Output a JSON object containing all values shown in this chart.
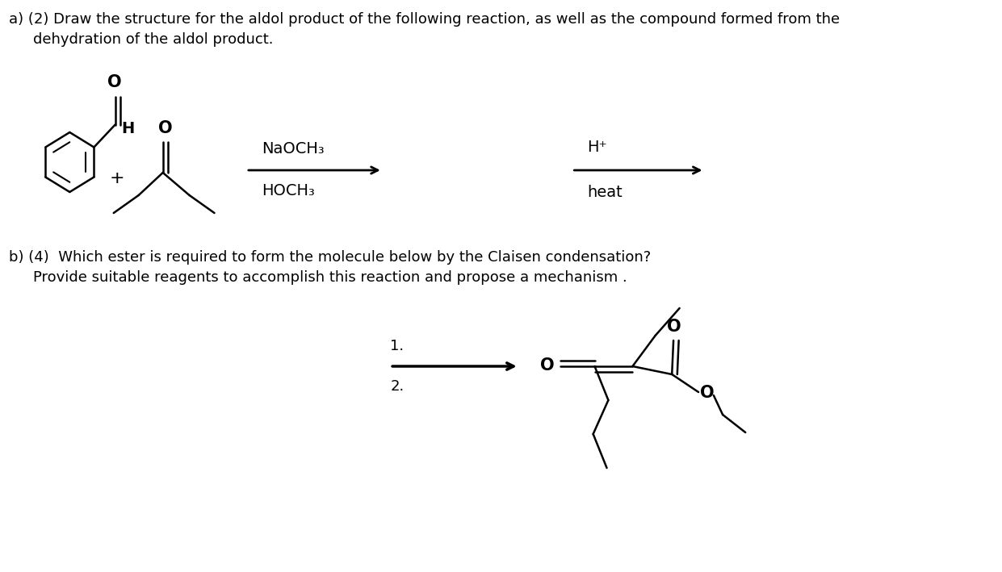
{
  "bg_color": "#ffffff",
  "text_color": "#000000",
  "title_a": "a) (2) Draw the structure for the aldol product of the following reaction, as well as the compound formed from the",
  "title_a2": "dehydration of the aldol product.",
  "title_b": "b) (4)  Which ester is required to form the molecule below by the Claisen condensation?",
  "title_b2": "Provide suitable reagents to accomplish this reaction and propose a mechanism .",
  "reagent1_line1": "NaOCH₃",
  "reagent1_line2": "HOCH₃",
  "reagent2_line1": "H⁺",
  "reagent2_line2": "heat",
  "label1": "1.",
  "label2": "2.",
  "fontsize_main": 13,
  "fontsize_chem": 14
}
